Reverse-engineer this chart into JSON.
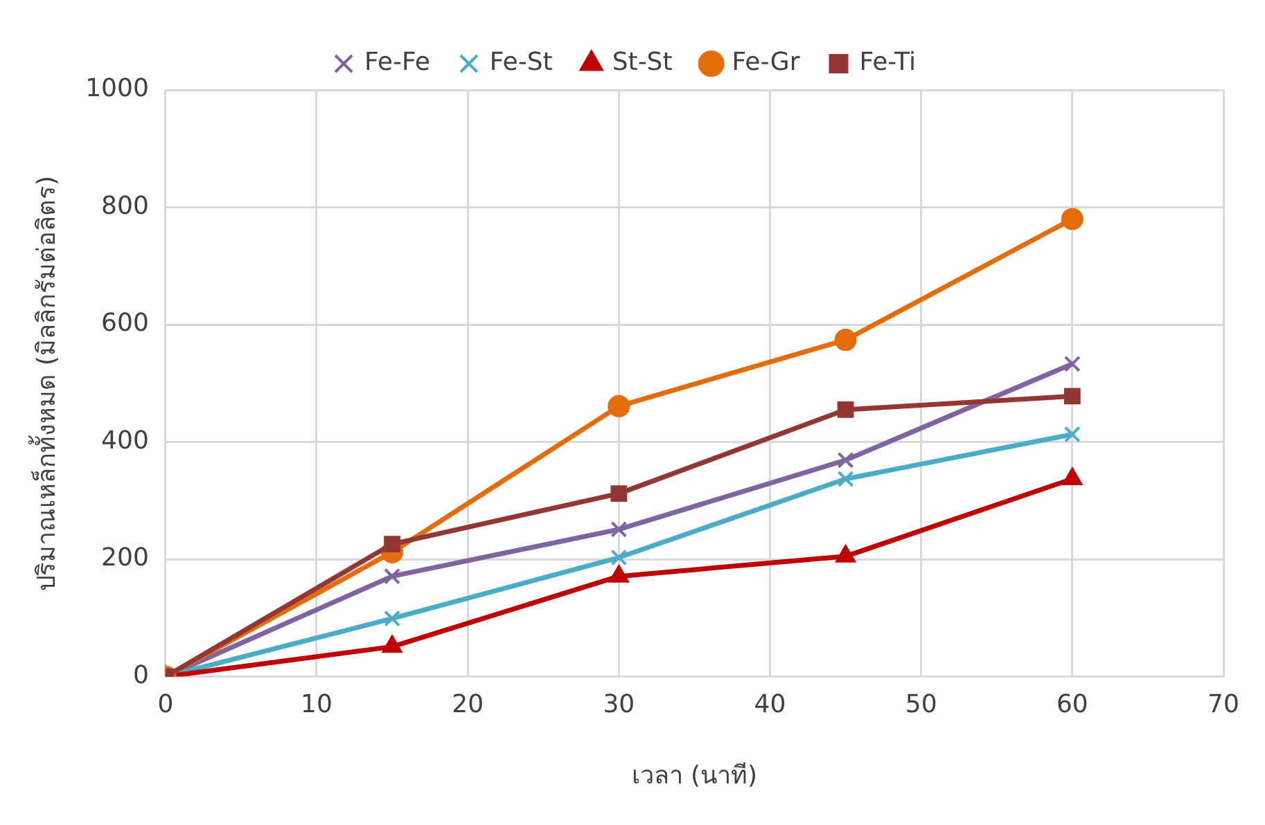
{
  "chart_data": {
    "type": "line",
    "xlabel": "เวลา (นาที)",
    "ylabel": "ปริมาณเหล็กทั้งหมด (มิลลิกรัมต่อลิตร)",
    "x": [
      0,
      15,
      30,
      45,
      60
    ],
    "xlim": [
      0,
      70
    ],
    "xticks": [
      0,
      10,
      20,
      30,
      40,
      50,
      60,
      70
    ],
    "ylim": [
      0,
      1000
    ],
    "yticks": [
      0,
      200,
      400,
      600,
      800,
      {
        "value": 1000,
        "label": "1000"
      }
    ],
    "grid": true,
    "legend": "top",
    "line_style": "solid",
    "series": [
      {
        "name": "Fe-Fe",
        "color": "#8064a2",
        "marker": "cross",
        "values": [
          0,
          171,
          251,
          369,
          533
        ]
      },
      {
        "name": "Fe-St",
        "color": "#4bacc6",
        "marker": "cross",
        "values": [
          0,
          99,
          203,
          337,
          413
        ]
      },
      {
        "name": "St-St",
        "color": "#c00000",
        "marker": "triangle",
        "values": [
          0,
          51,
          171,
          205,
          337
        ]
      },
      {
        "name": "Fe-Gr",
        "color": "#e46c0a",
        "marker": "circle",
        "values": [
          0,
          212,
          461,
          574,
          780
        ]
      },
      {
        "name": "Fe-Ti",
        "color": "#943634",
        "marker": "square",
        "values": [
          0,
          226,
          312,
          455,
          478
        ]
      }
    ]
  }
}
